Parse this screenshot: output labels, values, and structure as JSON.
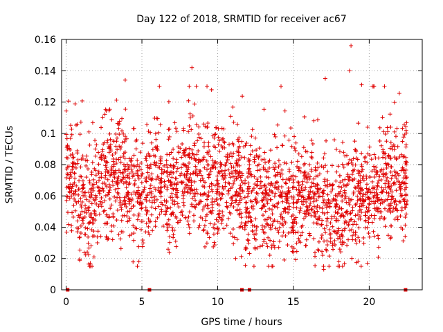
{
  "chart_data": {
    "type": "scatter",
    "title": "Day 122 of 2018, SRMTID for receiver ac67",
    "xlabel": "GPS time / hours",
    "ylabel": "SRMTID / TECUs",
    "xlim": [
      -0.3,
      23.5
    ],
    "ylim": [
      0,
      0.16
    ],
    "x_ticks": [
      0,
      5,
      10,
      15,
      20
    ],
    "x_tick_labels": [
      "0",
      "5",
      "10",
      "15",
      "20"
    ],
    "y_ticks": [
      0,
      0.02,
      0.04,
      0.06,
      0.08,
      0.1,
      0.12,
      0.14,
      0.16
    ],
    "y_tick_labels": [
      "0",
      "0.02",
      "0.04",
      "0.06",
      "0.08",
      "0.1",
      "0.12",
      "0.14",
      "0.16"
    ],
    "grid": true,
    "marker": "plus",
    "color": "#e00000",
    "series": [
      {
        "name": "SRMTID",
        "x_start": 0.0,
        "x_end": 22.5,
        "n_points": 2400,
        "data_gaps_at_zero": [
          0.1,
          5.5,
          11.6,
          12.1,
          22.4
        ],
        "y_mean_profile": [
          [
            0,
            0.072
          ],
          [
            1,
            0.058
          ],
          [
            1.5,
            0.048
          ],
          [
            2.5,
            0.068
          ],
          [
            3.5,
            0.072
          ],
          [
            4.5,
            0.062
          ],
          [
            5,
            0.058
          ],
          [
            6,
            0.072
          ],
          [
            7,
            0.06
          ],
          [
            8.5,
            0.078
          ],
          [
            9,
            0.065
          ],
          [
            10,
            0.065
          ],
          [
            11,
            0.068
          ],
          [
            12,
            0.06
          ],
          [
            13.5,
            0.058
          ],
          [
            15,
            0.055
          ],
          [
            16,
            0.06
          ],
          [
            17,
            0.052
          ],
          [
            18,
            0.05
          ],
          [
            19,
            0.055
          ],
          [
            20,
            0.06
          ],
          [
            21,
            0.07
          ],
          [
            22.5,
            0.07
          ]
        ],
        "y_spread": 0.018,
        "notable_points": [
          [
            18.8,
            0.156
          ],
          [
            8.3,
            0.142
          ],
          [
            18.7,
            0.14
          ],
          [
            17.1,
            0.135
          ],
          [
            3.9,
            0.134
          ],
          [
            19.5,
            0.131
          ],
          [
            4.8,
            0.018
          ],
          [
            17.0,
            0.013
          ],
          [
            18.0,
            0.018
          ]
        ]
      }
    ]
  }
}
